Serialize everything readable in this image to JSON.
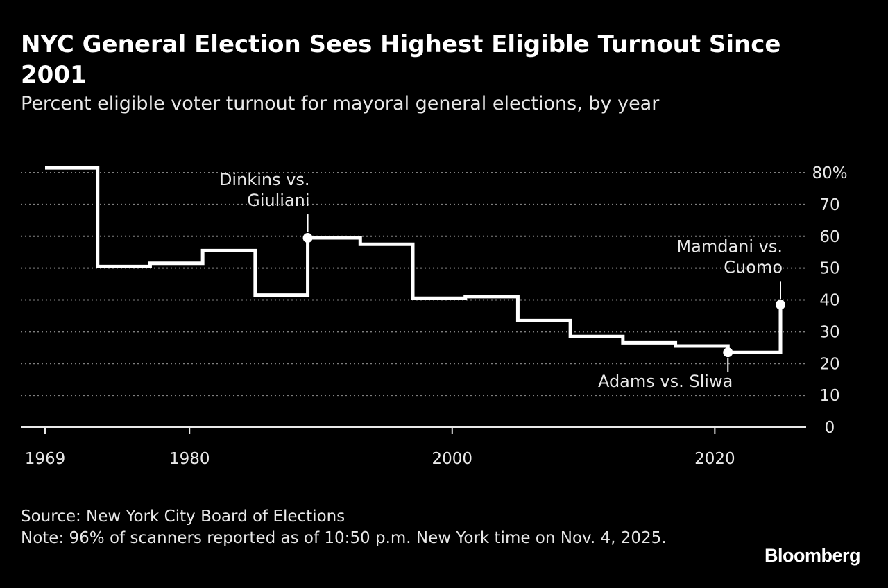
{
  "title": "NYC General Election Sees Highest Eligible Turnout Since 2001",
  "subtitle": "Percent eligible voter turnout for mayoral general elections, by year",
  "source": "Source: New York City Board of Elections",
  "note": "Note: 96% of scanners reported as of 10:50 p.m. New York time on Nov. 4, 2025.",
  "brand": "Bloomberg",
  "colors": {
    "background": "#000000",
    "line": "#ffffff",
    "grid": "#808080",
    "text": "#e8e8e8"
  },
  "chart_data": {
    "type": "line",
    "step": "post",
    "series": [
      {
        "x": [
          1969,
          1973,
          1977,
          1981,
          1985,
          1989,
          1993,
          1997,
          2001,
          2005,
          2009,
          2013,
          2017,
          2021,
          2025
        ],
        "y": [
          81.5,
          50.5,
          51.5,
          55.5,
          41.5,
          59.5,
          57.5,
          40.5,
          41,
          33.5,
          28.5,
          26.5,
          25.5,
          23.5,
          38.5
        ]
      }
    ],
    "xlim": [
      1969,
      2027
    ],
    "ylim": [
      0,
      80
    ],
    "x_ticks": [
      1969,
      1980,
      2000,
      2020
    ],
    "x_tick_labels": [
      "1969",
      "1980",
      "2000",
      "2020"
    ],
    "y_ticks": [
      0,
      10,
      20,
      30,
      40,
      50,
      60,
      70,
      80
    ],
    "y_tick_labels": [
      "0",
      "10",
      "20",
      "30",
      "40",
      "50",
      "60",
      "70",
      "80%"
    ],
    "y_axis_side": "right",
    "grid": "horizontal dotted",
    "annotations": [
      {
        "year": 1989,
        "value": 59.5,
        "lines": [
          "Dinkins vs.",
          "Giuliani"
        ],
        "position": "above"
      },
      {
        "year": 2021,
        "value": 23.5,
        "lines": [
          "Adams vs. Sliwa"
        ],
        "position": "below"
      },
      {
        "year": 2025,
        "value": 38.5,
        "lines": [
          "Mamdani vs.",
          "Cuomo"
        ],
        "position": "above"
      }
    ]
  }
}
